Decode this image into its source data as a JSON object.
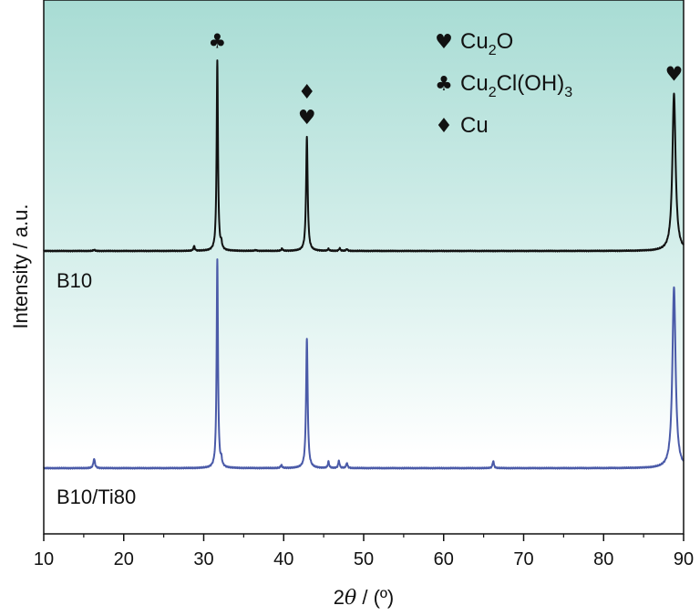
{
  "chart_data": {
    "type": "line",
    "xlabel_prefix": "2",
    "xlabel_theta": "θ",
    "xlabel_suffix": " / (º)",
    "ylabel": "Intensity / a.u.",
    "xlim": [
      10,
      90
    ],
    "xticks": [
      "10",
      "20",
      "30",
      "40",
      "50",
      "60",
      "70",
      "80",
      "90"
    ],
    "xtick_values": [
      10,
      20,
      30,
      40,
      50,
      60,
      70,
      80,
      90
    ],
    "colors": {
      "top_series": "#111111",
      "bottom_series": "#4a5aa8",
      "bg_top": "#a8dcd4",
      "bg_bottom": "#ffffff"
    },
    "series": [
      {
        "name": "B10",
        "color": "#111111",
        "baseline": 0,
        "peaks": [
          {
            "x": 16.3,
            "h": 0.006,
            "w": 0.12
          },
          {
            "x": 28.8,
            "h": 0.025,
            "w": 0.1
          },
          {
            "x": 31.7,
            "h": 1.0,
            "w": 0.1
          },
          {
            "x": 32.2,
            "h": 0.03,
            "w": 0.1
          },
          {
            "x": 36.5,
            "h": 0.004,
            "w": 0.15
          },
          {
            "x": 39.8,
            "h": 0.012,
            "w": 0.1
          },
          {
            "x": 42.9,
            "h": 0.6,
            "w": 0.12
          },
          {
            "x": 45.6,
            "h": 0.01,
            "w": 0.1
          },
          {
            "x": 47.0,
            "h": 0.014,
            "w": 0.1
          },
          {
            "x": 47.9,
            "h": 0.01,
            "w": 0.1
          },
          {
            "x": 88.8,
            "h": 0.83,
            "w": 0.24
          }
        ]
      },
      {
        "name": "B10/Ti80",
        "color": "#4a5aa8",
        "baseline": 0,
        "peaks": [
          {
            "x": 16.3,
            "h": 0.045,
            "w": 0.12
          },
          {
            "x": 31.7,
            "h": 1.0,
            "w": 0.1
          },
          {
            "x": 32.2,
            "h": 0.03,
            "w": 0.1
          },
          {
            "x": 39.7,
            "h": 0.015,
            "w": 0.1
          },
          {
            "x": 42.9,
            "h": 0.62,
            "w": 0.12
          },
          {
            "x": 45.6,
            "h": 0.03,
            "w": 0.1
          },
          {
            "x": 46.9,
            "h": 0.035,
            "w": 0.1
          },
          {
            "x": 47.9,
            "h": 0.025,
            "w": 0.1
          },
          {
            "x": 66.2,
            "h": 0.035,
            "w": 0.1
          },
          {
            "x": 88.8,
            "h": 0.87,
            "w": 0.24
          }
        ]
      }
    ],
    "peak_markers": [
      {
        "x": 31.7,
        "symbol": "♣"
      },
      {
        "x": 42.9,
        "symbol": "♥"
      },
      {
        "x": 42.9,
        "symbol": "♦"
      },
      {
        "x": 88.8,
        "symbol": "♥"
      }
    ],
    "legend": [
      {
        "symbol": "♥",
        "text": "Cu",
        "sub": "2",
        "after": "O"
      },
      {
        "symbol": "♣",
        "text": "Cu",
        "sub": "2",
        "after": "Cl(OH)",
        "sub2": "3"
      },
      {
        "symbol": "♦",
        "text": "Cu",
        "sub": "",
        "after": ""
      }
    ],
    "legend_placement": "top-right",
    "grid": false
  }
}
